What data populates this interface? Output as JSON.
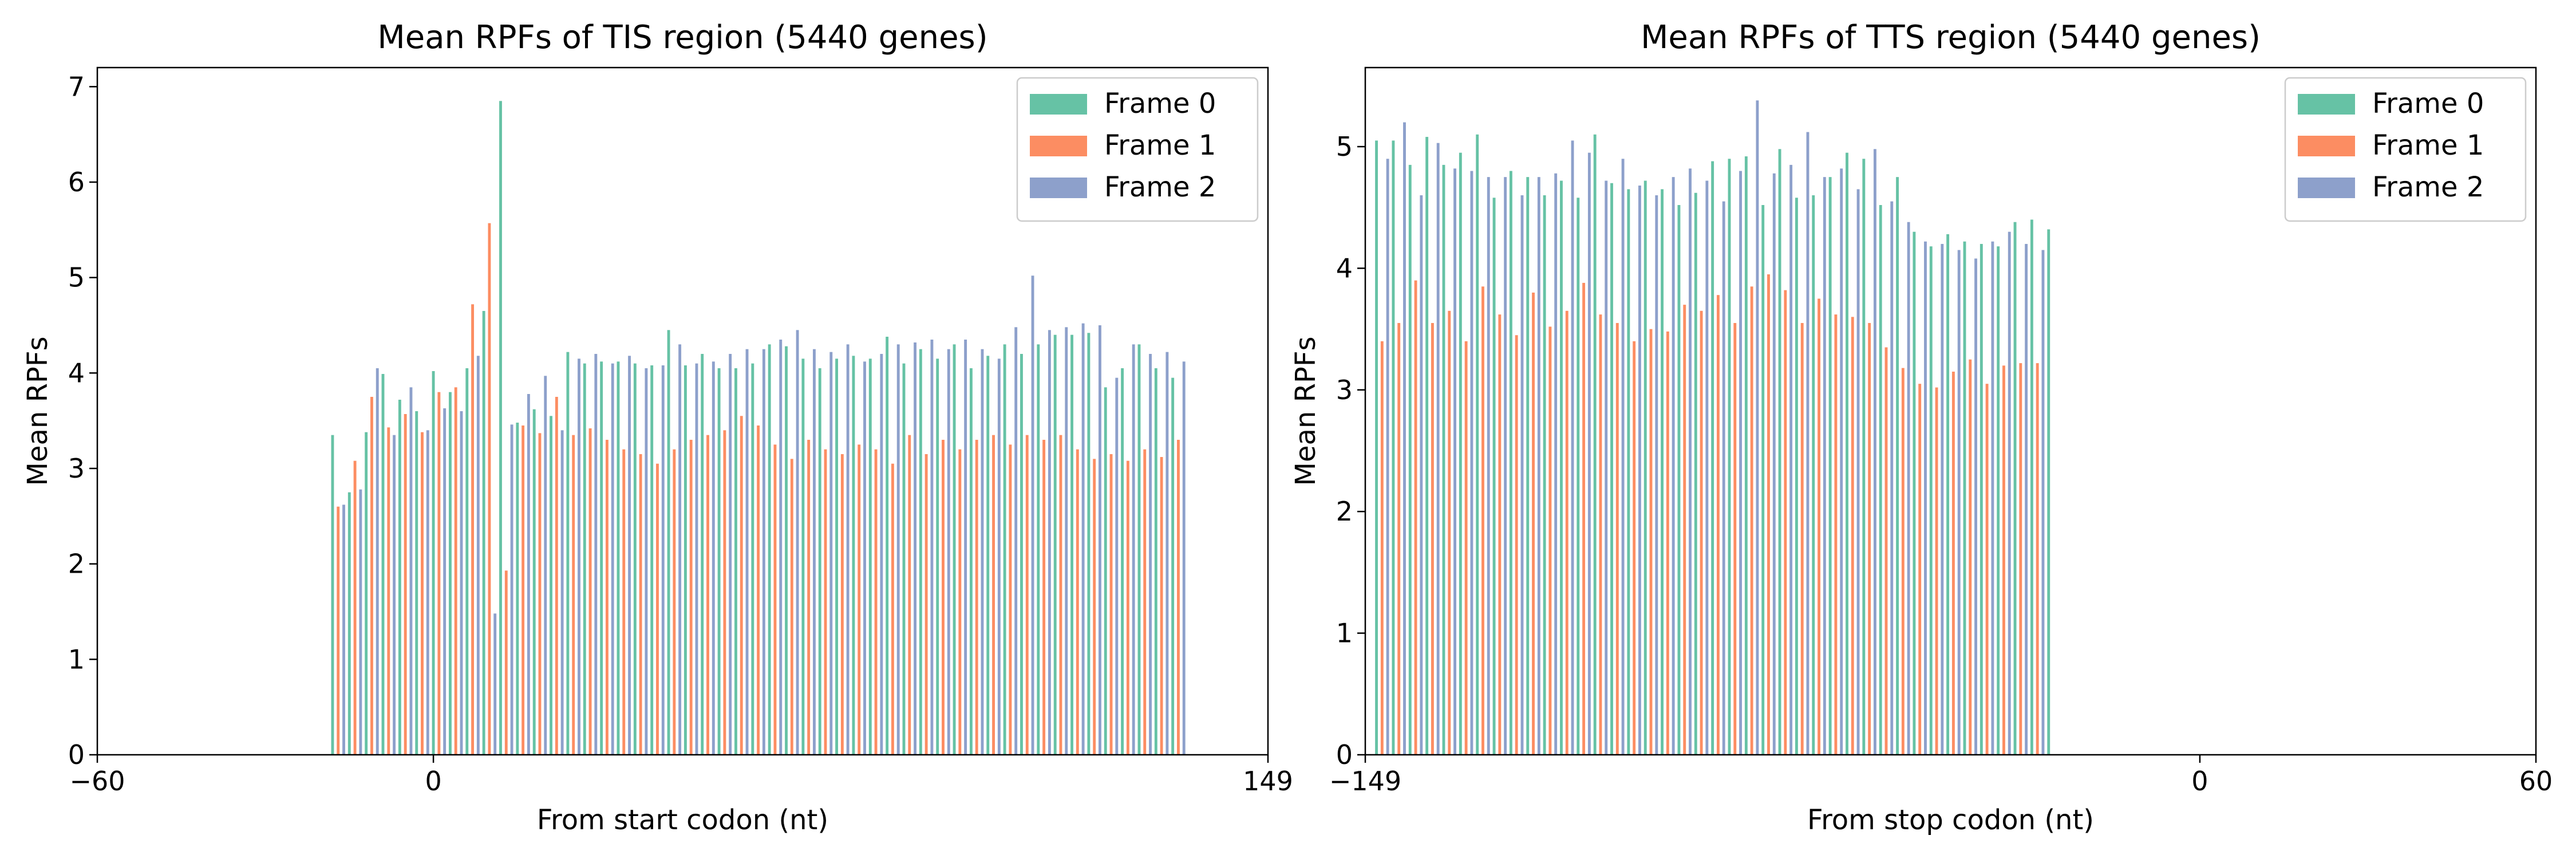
{
  "colors": {
    "frame0": "#66c2a5",
    "frame1": "#fc8d62",
    "frame2": "#8da0cb"
  },
  "chart_data": [
    {
      "type": "bar",
      "title": "Mean RPFs of TIS region (5440 genes)",
      "xlabel": "From start codon (nt)",
      "ylabel": "Mean RPFs",
      "xlim": [
        -60,
        149
      ],
      "ylim": [
        0,
        7.2
      ],
      "xticks": [
        {
          "value": -60,
          "label": "−60"
        },
        {
          "value": 0,
          "label": "0"
        },
        {
          "value": 149,
          "label": "149"
        }
      ],
      "yticks": [
        0,
        1,
        2,
        3,
        4,
        5,
        6,
        7
      ],
      "legend": {
        "position": "top-right",
        "entries": [
          "Frame 0",
          "Frame 1",
          "Frame 2"
        ]
      },
      "x_start": -18,
      "values": [
        3.35,
        2.6,
        2.62,
        2.75,
        3.08,
        2.78,
        3.38,
        3.75,
        4.05,
        3.99,
        3.43,
        3.35,
        3.72,
        3.57,
        3.85,
        3.6,
        3.38,
        3.4,
        4.02,
        3.8,
        3.63,
        3.8,
        3.85,
        3.6,
        4.05,
        4.72,
        4.18,
        4.65,
        5.57,
        1.48,
        6.85,
        1.93,
        3.46,
        3.48,
        3.45,
        3.78,
        3.62,
        3.37,
        3.97,
        3.55,
        3.75,
        3.4,
        4.22,
        3.35,
        4.15,
        4.1,
        3.42,
        4.2,
        4.12,
        3.3,
        4.1,
        4.12,
        3.2,
        4.18,
        4.1,
        3.15,
        4.05,
        4.08,
        3.05,
        4.08,
        4.45,
        3.2,
        4.3,
        4.08,
        3.3,
        4.1,
        4.2,
        3.35,
        4.12,
        4.05,
        3.4,
        4.2,
        4.05,
        3.55,
        4.25,
        4.1,
        3.45,
        4.25,
        4.3,
        3.25,
        4.35,
        4.28,
        3.1,
        4.45,
        4.15,
        3.3,
        4.25,
        4.05,
        3.2,
        4.22,
        4.15,
        3.15,
        4.3,
        4.18,
        3.25,
        4.12,
        4.15,
        3.2,
        4.2,
        4.38,
        3.05,
        4.3,
        4.1,
        3.35,
        4.32,
        4.25,
        3.15,
        4.35,
        4.15,
        3.3,
        4.25,
        4.3,
        3.2,
        4.35,
        4.05,
        3.3,
        4.25,
        4.18,
        3.35,
        4.15,
        4.3,
        3.25,
        4.48,
        4.2,
        3.35,
        5.02,
        4.3,
        3.3,
        4.45,
        4.4,
        3.35,
        4.48,
        4.4,
        3.2,
        4.52,
        4.42,
        3.1,
        4.5,
        3.85,
        3.15,
        3.95,
        4.05,
        3.08,
        4.3,
        4.3,
        3.2,
        4.2,
        4.05,
        3.12,
        4.22,
        3.95,
        3.3,
        4.12
      ]
    },
    {
      "type": "bar",
      "title": "Mean RPFs of TTS region (5440 genes)",
      "xlabel": "From stop codon (nt)",
      "ylabel": "Mean RPFs",
      "xlim": [
        -149,
        60
      ],
      "ylim": [
        0,
        5.65
      ],
      "xticks": [
        {
          "value": -149,
          "label": "−149"
        },
        {
          "value": 0,
          "label": "0"
        },
        {
          "value": 60,
          "label": "60"
        }
      ],
      "yticks": [
        0,
        1,
        2,
        3,
        4,
        5
      ],
      "legend": {
        "position": "top-right",
        "entries": [
          "Frame 0",
          "Frame 1",
          "Frame 2"
        ]
      },
      "x_start": -147,
      "values": [
        5.05,
        3.4,
        4.9,
        5.05,
        3.55,
        5.2,
        4.85,
        3.9,
        4.6,
        5.08,
        3.55,
        5.03,
        4.85,
        3.65,
        4.82,
        4.95,
        3.4,
        4.8,
        5.1,
        3.85,
        4.75,
        4.58,
        3.62,
        4.75,
        4.8,
        3.45,
        4.6,
        4.75,
        3.8,
        4.75,
        4.6,
        3.52,
        4.78,
        4.72,
        3.65,
        5.05,
        4.58,
        3.88,
        4.95,
        5.1,
        3.62,
        4.72,
        4.7,
        3.55,
        4.9,
        4.65,
        3.4,
        4.68,
        4.72,
        3.5,
        4.6,
        4.65,
        3.48,
        4.75,
        4.52,
        3.7,
        4.82,
        4.62,
        3.65,
        4.72,
        4.88,
        3.78,
        4.55,
        4.9,
        3.55,
        4.8,
        4.92,
        3.85,
        5.38,
        4.52,
        3.95,
        4.78,
        4.98,
        3.82,
        4.85,
        4.58,
        3.55,
        5.12,
        4.6,
        3.75,
        4.75,
        4.75,
        3.62,
        4.82,
        4.95,
        3.6,
        4.65,
        4.9,
        3.55,
        4.98,
        4.52,
        3.35,
        4.55,
        4.75,
        3.18,
        4.38,
        4.3,
        3.05,
        4.22,
        4.18,
        3.02,
        4.2,
        4.28,
        3.15,
        4.15,
        4.22,
        3.25,
        4.08,
        4.2,
        3.05,
        4.22,
        4.18,
        3.2,
        4.3,
        4.38,
        3.22,
        4.2,
        4.4,
        3.22,
        4.15,
        4.32
      ]
    }
  ]
}
